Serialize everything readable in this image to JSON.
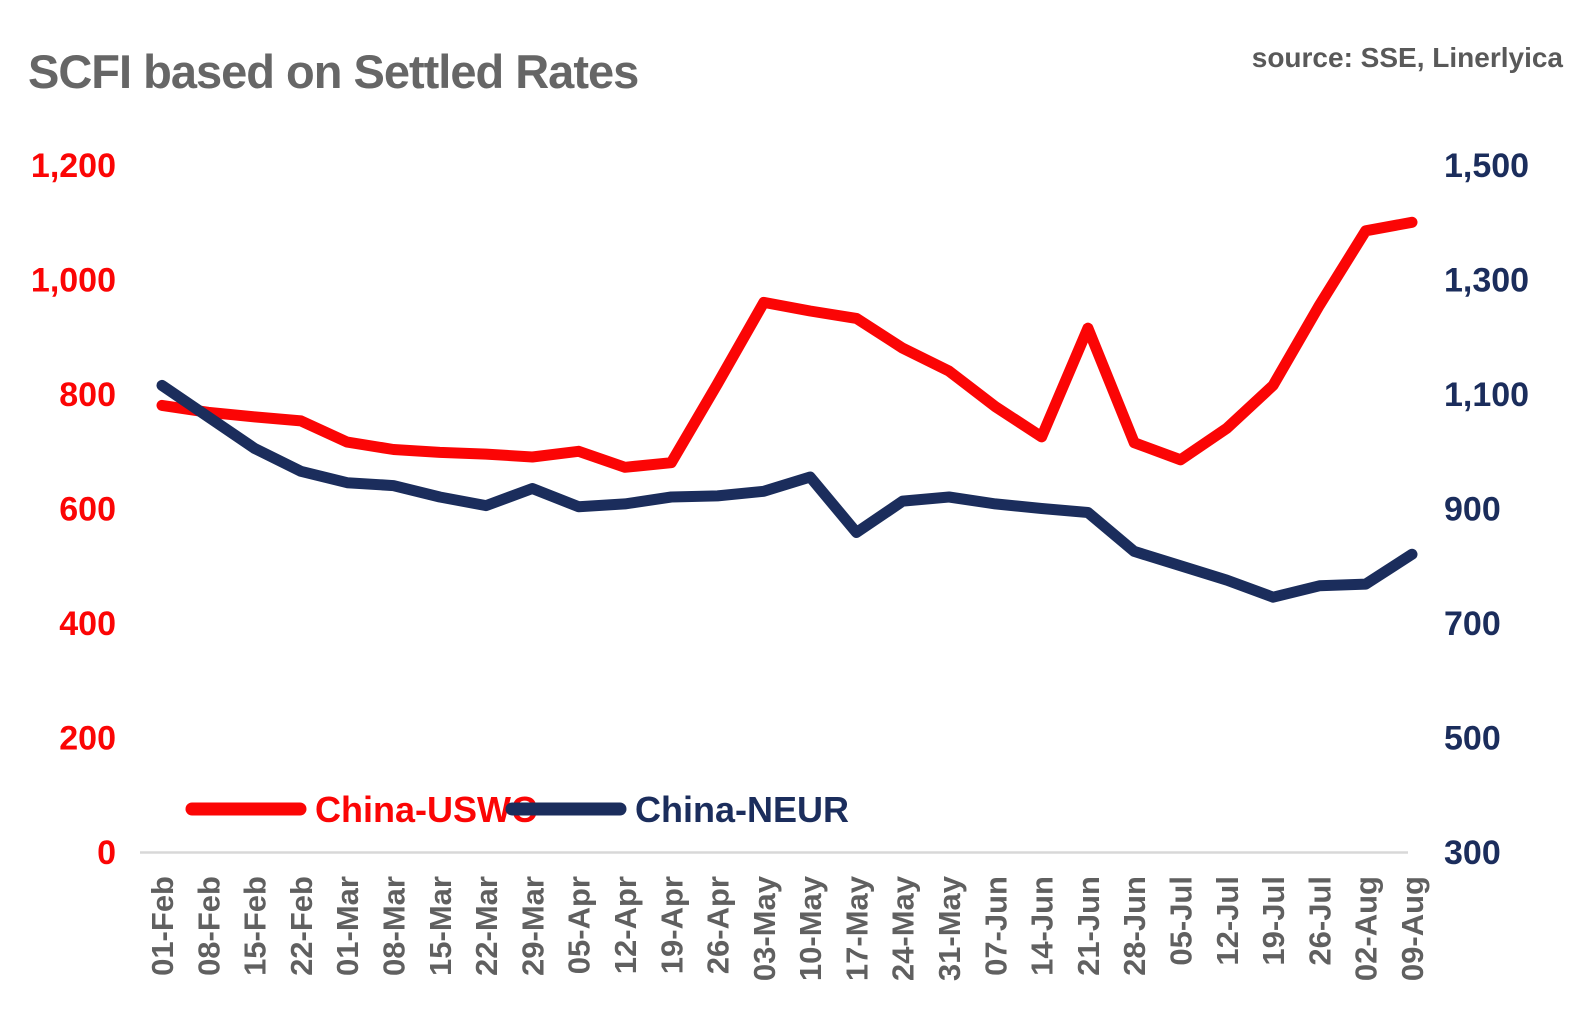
{
  "header": {
    "title": "SCFI based on Settled Rates",
    "source": "source: SSE, Linerlyica"
  },
  "colors": {
    "uswc_red": "#FB0505",
    "neur_navy": "#1B2D5C",
    "title_gray": "#666666",
    "axis_label_gray": "#606060",
    "baseline_gray": "#D8D8D8"
  },
  "legend": [
    {
      "label": "China-USWC",
      "color": "#FB0505"
    },
    {
      "label": "China-NEUR",
      "color": "#1B2D5C"
    }
  ],
  "chart_data": {
    "type": "line",
    "title": "SCFI based on Settled Rates",
    "source": "source: SSE, Linerlyica",
    "grid": false,
    "legend_position": "bottom-left-inside",
    "categories": [
      "01-Feb",
      "08-Feb",
      "15-Feb",
      "22-Feb",
      "01-Mar",
      "08-Mar",
      "15-Mar",
      "22-Mar",
      "29-Mar",
      "05-Apr",
      "12-Apr",
      "19-Apr",
      "26-Apr",
      "03-May",
      "10-May",
      "17-May",
      "24-May",
      "31-May",
      "07-Jun",
      "14-Jun",
      "21-Jun",
      "28-Jun",
      "05-Jul",
      "12-Jul",
      "19-Jul",
      "26-Jul",
      "02-Aug",
      "09-Aug"
    ],
    "series": [
      {
        "name": "China-USWC",
        "axis": "left",
        "color": "#FB0505",
        "values": [
          780,
          768,
          760,
          753,
          716,
          703,
          698,
          695,
          690,
          700,
          672,
          680,
          818,
          960,
          945,
          932,
          880,
          840,
          778,
          725,
          915,
          715,
          685,
          740,
          815,
          955,
          1085,
          1100
        ]
      },
      {
        "name": "China-NEUR",
        "axis": "right",
        "color": "#1B2D5C",
        "values": [
          1115,
          1060,
          1005,
          965,
          945,
          940,
          920,
          905,
          935,
          903,
          908,
          920,
          922,
          930,
          955,
          858,
          913,
          920,
          908,
          900,
          893,
          825,
          800,
          775,
          745,
          765,
          768,
          820
        ]
      }
    ],
    "left_axis": {
      "min": 0,
      "max": 1200,
      "ticks": [
        {
          "value": 0,
          "label": "0"
        },
        {
          "value": 200,
          "label": "200"
        },
        {
          "value": 400,
          "label": "400"
        },
        {
          "value": 600,
          "label": "600"
        },
        {
          "value": 800,
          "label": "800"
        },
        {
          "value": 1000,
          "label": "1,000"
        },
        {
          "value": 1200,
          "label": "1,200"
        }
      ]
    },
    "right_axis": {
      "min": 300,
      "max": 1500,
      "ticks": [
        {
          "value": 300,
          "label": "300"
        },
        {
          "value": 500,
          "label": "500"
        },
        {
          "value": 700,
          "label": "700"
        },
        {
          "value": 900,
          "label": "900"
        },
        {
          "value": 1100,
          "label": "1,100"
        },
        {
          "value": 1300,
          "label": "1,300"
        },
        {
          "value": 1500,
          "label": "1,500"
        }
      ]
    }
  }
}
